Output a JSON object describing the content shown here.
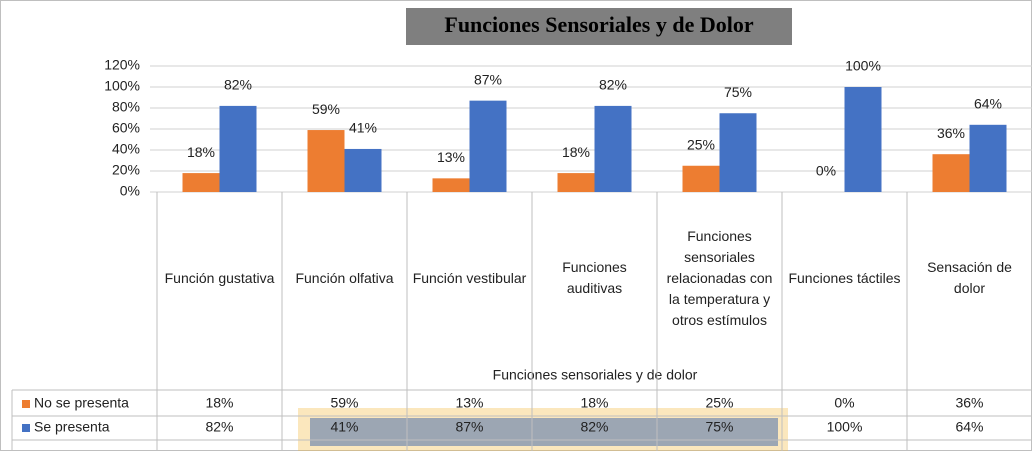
{
  "chart_data": {
    "type": "bar",
    "title": "Funciones Sensoriales y de Dolor",
    "x_label": "Funciones sensoriales y de dolor",
    "categories": [
      "Función gustativa",
      "Función olfativa",
      "Función vestibular",
      "Funciones auditivas",
      "Funciones sensoriales relacionadas con la temperatura y otros estímulos",
      "Funciones táctiles",
      "Sensación de dolor"
    ],
    "series": [
      {
        "name": "No se presenta",
        "color": "#ed7d31",
        "values": [
          18,
          59,
          13,
          18,
          25,
          0,
          36
        ],
        "value_labels": [
          "18%",
          "59%",
          "13%",
          "18%",
          "25%",
          "0%",
          "36%"
        ]
      },
      {
        "name": "Se presenta",
        "color": "#4472c4",
        "values": [
          82,
          41,
          87,
          82,
          75,
          100,
          64
        ],
        "value_labels": [
          "82%",
          "41%",
          "87%",
          "82%",
          "75%",
          "100%",
          "64%"
        ]
      }
    ],
    "ylim": [
      0,
      120
    ],
    "yticks": [
      {
        "value": 0,
        "label": "0%"
      },
      {
        "value": 20,
        "label": "20%"
      },
      {
        "value": 40,
        "label": "40%"
      },
      {
        "value": 60,
        "label": "60%"
      },
      {
        "value": 80,
        "label": "80%"
      },
      {
        "value": 100,
        "label": "100%"
      },
      {
        "value": 120,
        "label": "120%"
      }
    ],
    "grid": true
  }
}
